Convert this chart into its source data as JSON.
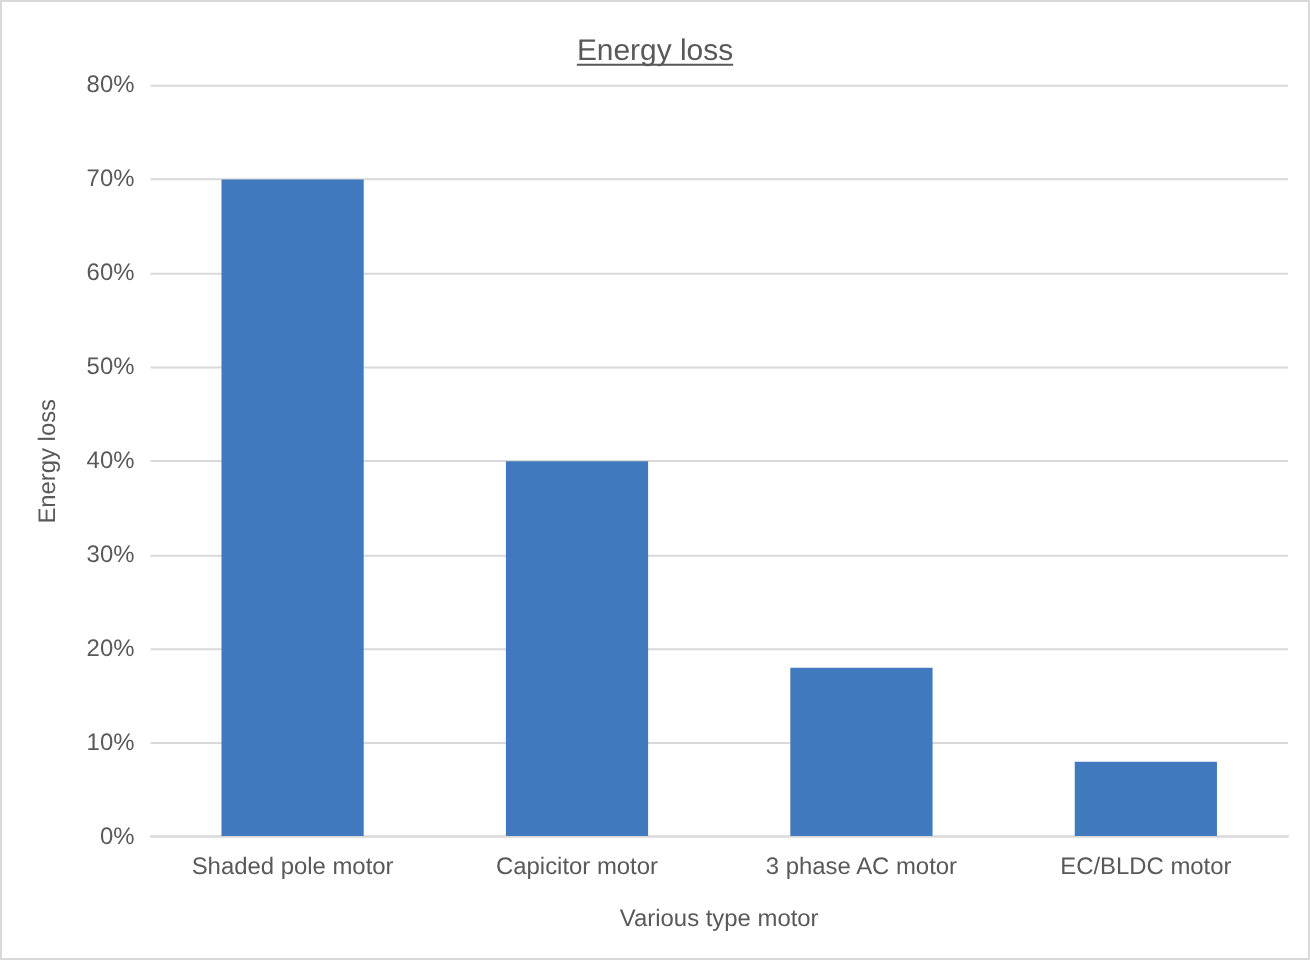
{
  "chart_data": {
    "type": "bar",
    "title": "Energy loss",
    "xlabel": "Various type motor",
    "ylabel": "Energy loss",
    "categories": [
      "Shaded pole motor",
      "Capicitor motor",
      "3 phase AC motor",
      "EC/BLDC motor"
    ],
    "values": [
      70,
      40,
      18,
      8
    ],
    "color": "#4179be",
    "ylim": [
      0,
      80
    ],
    "yticks": [
      {
        "value": 0,
        "label": "0%"
      },
      {
        "value": 10,
        "label": "10%"
      },
      {
        "value": 20,
        "label": "20%"
      },
      {
        "value": 30,
        "label": "30%"
      },
      {
        "value": 40,
        "label": "40%"
      },
      {
        "value": 50,
        "label": "50%"
      },
      {
        "value": 60,
        "label": "60%"
      },
      {
        "value": 70,
        "label": "70%"
      },
      {
        "value": 80,
        "label": "80%"
      }
    ],
    "grid": "y",
    "legend": false
  }
}
